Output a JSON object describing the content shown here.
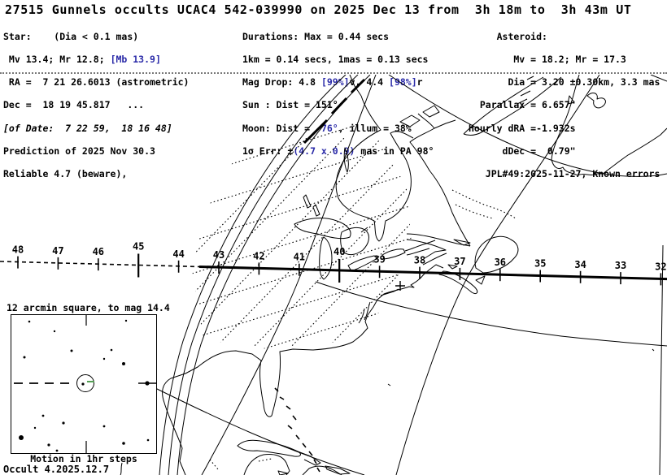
{
  "title": "27515 Gunnels occults UCAC4 542-039990 on 2025 Dec 13 from  3h 18m to  3h 43m UT",
  "colors": {
    "text": "#000000",
    "accent_blue": "#2a2aa8",
    "motion_green": "#55a055"
  },
  "star_block": {
    "l1": "Star:    (Dia < 0.1 mas)",
    "l2a": " Mv 13.4; Mr 12.8; ",
    "l2b": "[Mb 13.9]",
    "l3": " RA =  7 21 26.6013 (astrometric)",
    "l4": "Dec =  18 19 45.817   ...",
    "l5": "[of Date:  7 22 59,  18 16 48]",
    "l6": "Prediction of 2025 Nov 30.3",
    "l7": "Reliable 4.7 (beware),"
  },
  "mid_block": {
    "l1": "Durations: Max = 0.44 secs",
    "l2": "1km = 0.14 secs, 1mas = 0.13 secs",
    "l3a": "Mag Drop: 4.8 ",
    "l3b": "[99%]",
    "l3c": "v, 4.4 ",
    "l3d": "[98%]",
    "l3e": "r",
    "l4": "Sun : Dist = 151°",
    "l5a": "Moon: Dist =  ",
    "l5b": "76°",
    "l5c": ", illum = 38%",
    "l6a": "1σ Err: ±",
    "l6b": "(4.7 x 0.9)",
    "l6c": " mas in PA 98°"
  },
  "asteroid_block": {
    "l1": "     Asteroid:",
    "l2": "        Mv = 18.2; Mr = 17.3",
    "l3": "       Dia = 3.20 ±0.30km, 3.3 mas",
    "l4": "  Parallax = 6.657\"",
    "l5": "Hourly dRA =-1.932s",
    "l6": "      dDec =  0.79\"",
    "l7": "   JPL#49:2025-11-27, Known errors"
  },
  "path": {
    "tick_labels": [
      48,
      47,
      46,
      45,
      44,
      43,
      42,
      41,
      40,
      39,
      38,
      37,
      36,
      35,
      34,
      33,
      32
    ],
    "major_labels": [
      45,
      40
    ],
    "dashed_tick_labels": [
      48,
      47,
      46,
      45,
      44
    ]
  },
  "inset": {
    "title": "12 arcmin square, to mag 14.4",
    "caption": "Motion in 1hr steps",
    "stars": [
      [
        22,
        8,
        1.3
      ],
      [
        53,
        20,
        1.2
      ],
      [
        141,
        7,
        1.2
      ],
      [
        16,
        52,
        1.5
      ],
      [
        74,
        44,
        1.5
      ],
      [
        123,
        43,
        1.3
      ],
      [
        114,
        54,
        1.2
      ],
      [
        138,
        60,
        2.0
      ],
      [
        88,
        85,
        1.6
      ],
      [
        39,
        124,
        1.4
      ],
      [
        64,
        133,
        1.6
      ],
      [
        114,
        137,
        1.4
      ],
      [
        29,
        139,
        1.2
      ],
      [
        12,
        151,
        3.0
      ],
      [
        46,
        160,
        1.6
      ],
      [
        138,
        158,
        1.8
      ],
      [
        56,
        167,
        1.4
      ],
      [
        168,
        154,
        1.3
      ]
    ]
  },
  "footer": {
    "version": "Occult 4.2025.12.7"
  }
}
